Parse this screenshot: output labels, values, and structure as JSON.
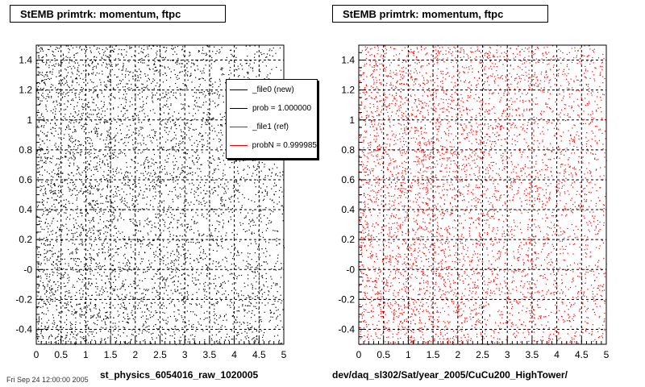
{
  "panels": [
    {
      "title": "StEMB primtrk: momentum, ftpc",
      "caption": "st_physics_6054016_raw_1020005"
    },
    {
      "title": "StEMB primtrk: momentum, ftpc",
      "caption": "dev/daq_sl302/Sat/year_2005/CuCu200_HighTower/"
    }
  ],
  "legend": {
    "entries": [
      {
        "label": "_file0 (new)",
        "color": "#000000"
      },
      {
        "label": "prob = 1.000000",
        "color": "#000000"
      },
      {
        "label": "_file1 (ref)",
        "color": "#ff0000"
      },
      {
        "label": "probN = 0.999985",
        "color": "#ff0000"
      }
    ]
  },
  "footer": "Fri Sep 24 12:00:00 2005",
  "chart_data": [
    {
      "type": "scatter",
      "title": "StEMB primtrk: momentum, ftpc",
      "xlabel": "st_physics_6054016_raw_1020005",
      "ylabel": "",
      "xlim": [
        0,
        5
      ],
      "ylim": [
        -0.5,
        1.5
      ],
      "xticks": [
        "0",
        "0.5",
        "1",
        "1.5",
        "2",
        "2.5",
        "3",
        "3.5",
        "4",
        "4.5",
        "5"
      ],
      "yticks": [
        "-0.4",
        "-0.2",
        "-0",
        "0.2",
        "0.4",
        "0.6",
        "0.8",
        "1",
        "1.2",
        "1.4"
      ],
      "grid": true,
      "series": [
        {
          "name": "_file0 (new)",
          "color": "#000000"
        }
      ]
    },
    {
      "type": "scatter",
      "title": "StEMB primtrk: momentum, ftpc",
      "xlabel": "dev/daq_sl302/Sat/year_2005/CuCu200_HighTower/",
      "ylabel": "",
      "xlim": [
        0,
        5
      ],
      "ylim": [
        -0.5,
        1.5
      ],
      "xticks": [
        "0",
        "0.5",
        "1",
        "1.5",
        "2",
        "2.5",
        "3",
        "3.5",
        "4",
        "4.5",
        "5"
      ],
      "yticks": [
        "-0.4",
        "-0.2",
        "-0",
        "0.2",
        "0.4",
        "0.6",
        "0.8",
        "1",
        "1.2",
        "1.4"
      ],
      "grid": true,
      "series": [
        {
          "name": "_file1 (ref)",
          "color": "#ff0000"
        }
      ]
    }
  ]
}
